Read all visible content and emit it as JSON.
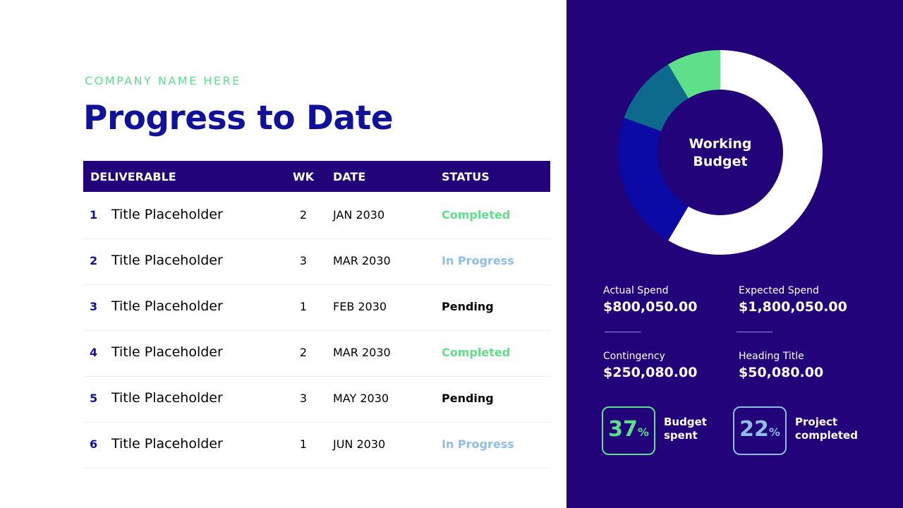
{
  "header": {
    "company": "COMPANY NAME HERE",
    "title": "Progress to Date"
  },
  "table": {
    "columns": [
      "DELIVERABLE",
      "WK",
      "DATE",
      "STATUS"
    ],
    "rows": [
      {
        "no": "1",
        "title": "Title Placeholder",
        "wk": "2",
        "date": "JAN 2030",
        "status": "Completed",
        "status_color": "#5ee08a"
      },
      {
        "no": "2",
        "title": "Title Placeholder",
        "wk": "3",
        "date": "MAR 2030",
        "status": "In Progress",
        "status_color": "#8fbde6"
      },
      {
        "no": "3",
        "title": "Title Placeholder",
        "wk": "1",
        "date": "FEB 2030",
        "status": "Pending",
        "status_color": "#000000"
      },
      {
        "no": "4",
        "title": "Title Placeholder",
        "wk": "2",
        "date": "MAR 2030",
        "status": "Completed",
        "status_color": "#5ee08a"
      },
      {
        "no": "5",
        "title": "Title Placeholder",
        "wk": "3",
        "date": "MAY 2030",
        "status": "Pending",
        "status_color": "#000000"
      },
      {
        "no": "6",
        "title": "Title Placeholder",
        "wk": "1",
        "date": "JUN 2030",
        "status": "In Progress",
        "status_color": "#8fbde6"
      }
    ]
  },
  "donut": {
    "center_label": "Working Budget",
    "segments": [
      {
        "value": 58.5,
        "color": "#ffffff"
      },
      {
        "value": 22,
        "color": "#0c0aa6"
      },
      {
        "value": 11,
        "color": "#0d6a8c"
      },
      {
        "value": 8.5,
        "color": "#5ee08a"
      }
    ]
  },
  "stats": [
    {
      "label": "Actual Spend",
      "value": "$800,050.00"
    },
    {
      "label": "Expected Spend",
      "value": "$1,800,050.00"
    },
    {
      "label": "Contingency",
      "value": "$250,080.00"
    },
    {
      "label": "Heading Title",
      "value": "$50,080.00"
    }
  ],
  "kpis": [
    {
      "number": "37",
      "unit": "%",
      "label": "Budget spent",
      "color": "#5ee08a"
    },
    {
      "number": "22",
      "unit": "%",
      "label": "Project completed",
      "color": "#8fbde6"
    }
  ]
}
